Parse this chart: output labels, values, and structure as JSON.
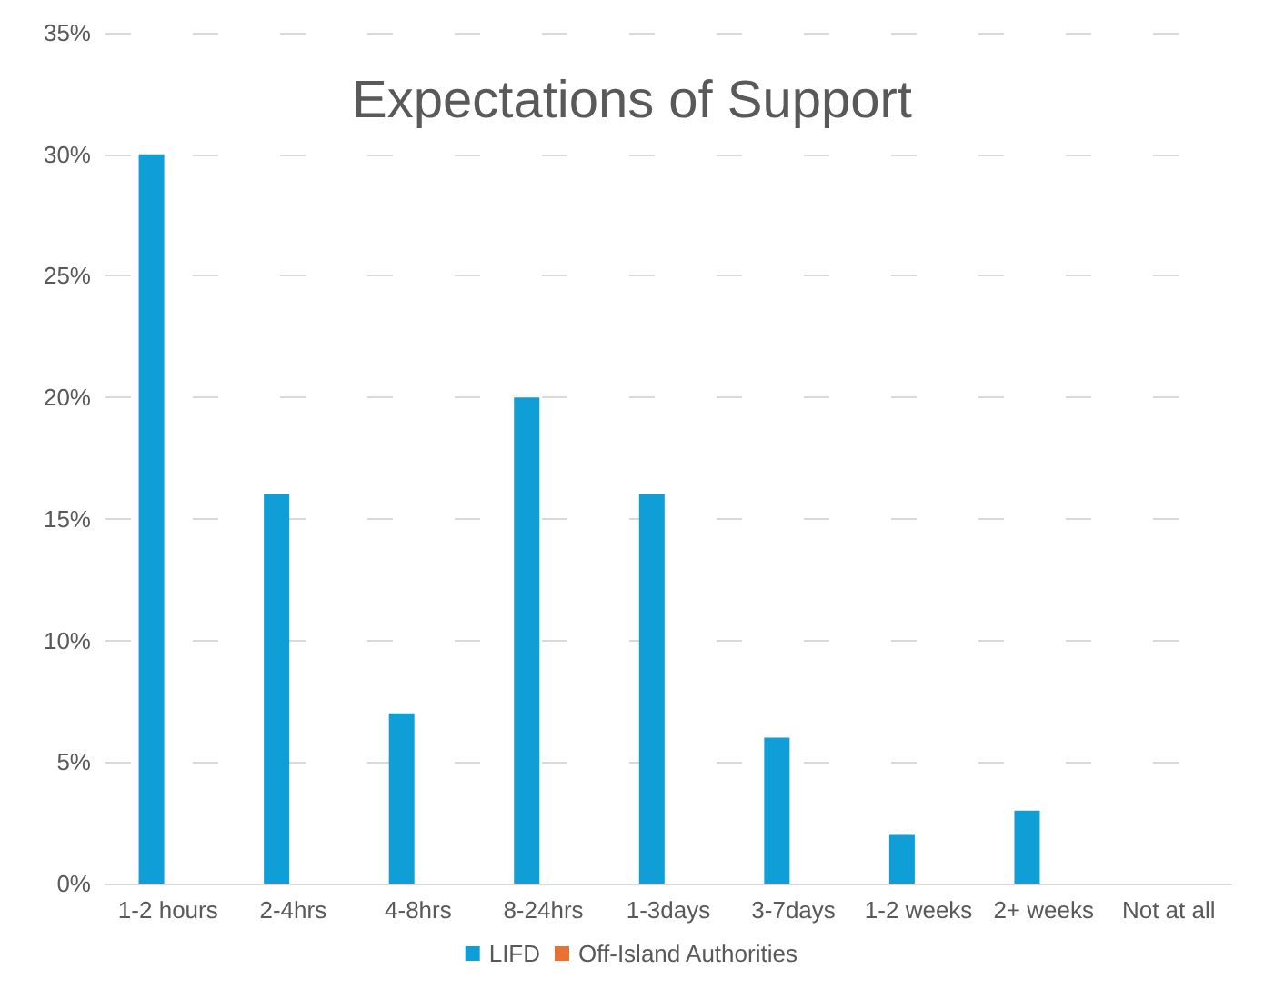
{
  "chart_data": {
    "type": "bar",
    "title": "Expectations of Support",
    "categories": [
      "1-2 hours",
      "2-4hrs",
      "4-8hrs",
      "8-24hrs",
      "1-3days",
      "3-7days",
      "1-2 weeks",
      "2+ weeks",
      "Not at all"
    ],
    "series": [
      {
        "name": "LIFD",
        "color": "#0f9ed5",
        "values": [
          30,
          16,
          7,
          20,
          16,
          6,
          2,
          3,
          0
        ]
      },
      {
        "name": "Off-Island Authorities",
        "color": "#e97132",
        "values": [
          0,
          0,
          0,
          0,
          0,
          0,
          0,
          0,
          0
        ]
      }
    ],
    "ylim": [
      0,
      35
    ],
    "yticks": [
      {
        "value": 0,
        "label": "0%"
      },
      {
        "value": 5,
        "label": "5%"
      },
      {
        "value": 10,
        "label": "10%"
      },
      {
        "value": 15,
        "label": "15%"
      },
      {
        "value": 20,
        "label": "20%"
      },
      {
        "value": 25,
        "label": "25%"
      },
      {
        "value": 30,
        "label": "30%"
      },
      {
        "value": 35,
        "label": "35%"
      }
    ],
    "grid": "y",
    "legend": "bottom"
  }
}
